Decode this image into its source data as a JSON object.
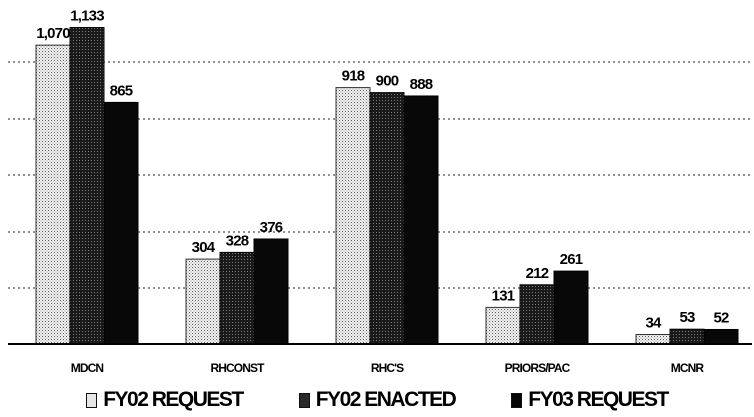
{
  "chart_data": {
    "type": "bar",
    "title": "",
    "xlabel": "",
    "ylabel": "",
    "categories": [
      "MDCN",
      "RHCONST",
      "RHC'S",
      "PRIORS/PAC",
      "MCNR"
    ],
    "series": [
      {
        "name": "FY02 REQUEST",
        "values": [
          1070,
          304,
          918,
          131,
          34
        ],
        "labels": [
          "1,070",
          "304",
          "918",
          "131",
          "34"
        ],
        "color": "#d9d9d9",
        "pattern": "light-dots"
      },
      {
        "name": "FY02 ENACTED",
        "values": [
          1133,
          328,
          900,
          212,
          53
        ],
        "labels": [
          "1,133",
          "328",
          "900",
          "212",
          "53"
        ],
        "color": "#1e1e1e",
        "pattern": "dark-dots"
      },
      {
        "name": "FY03 REQUEST",
        "values": [
          865,
          376,
          888,
          261,
          52
        ],
        "labels": [
          "865",
          "376",
          "888",
          "261",
          "52"
        ],
        "color": "#080808",
        "pattern": "solid"
      }
    ],
    "ylim": [
      0,
      1160
    ],
    "grid": "horizontal-dotted",
    "legend_position": "bottom"
  }
}
